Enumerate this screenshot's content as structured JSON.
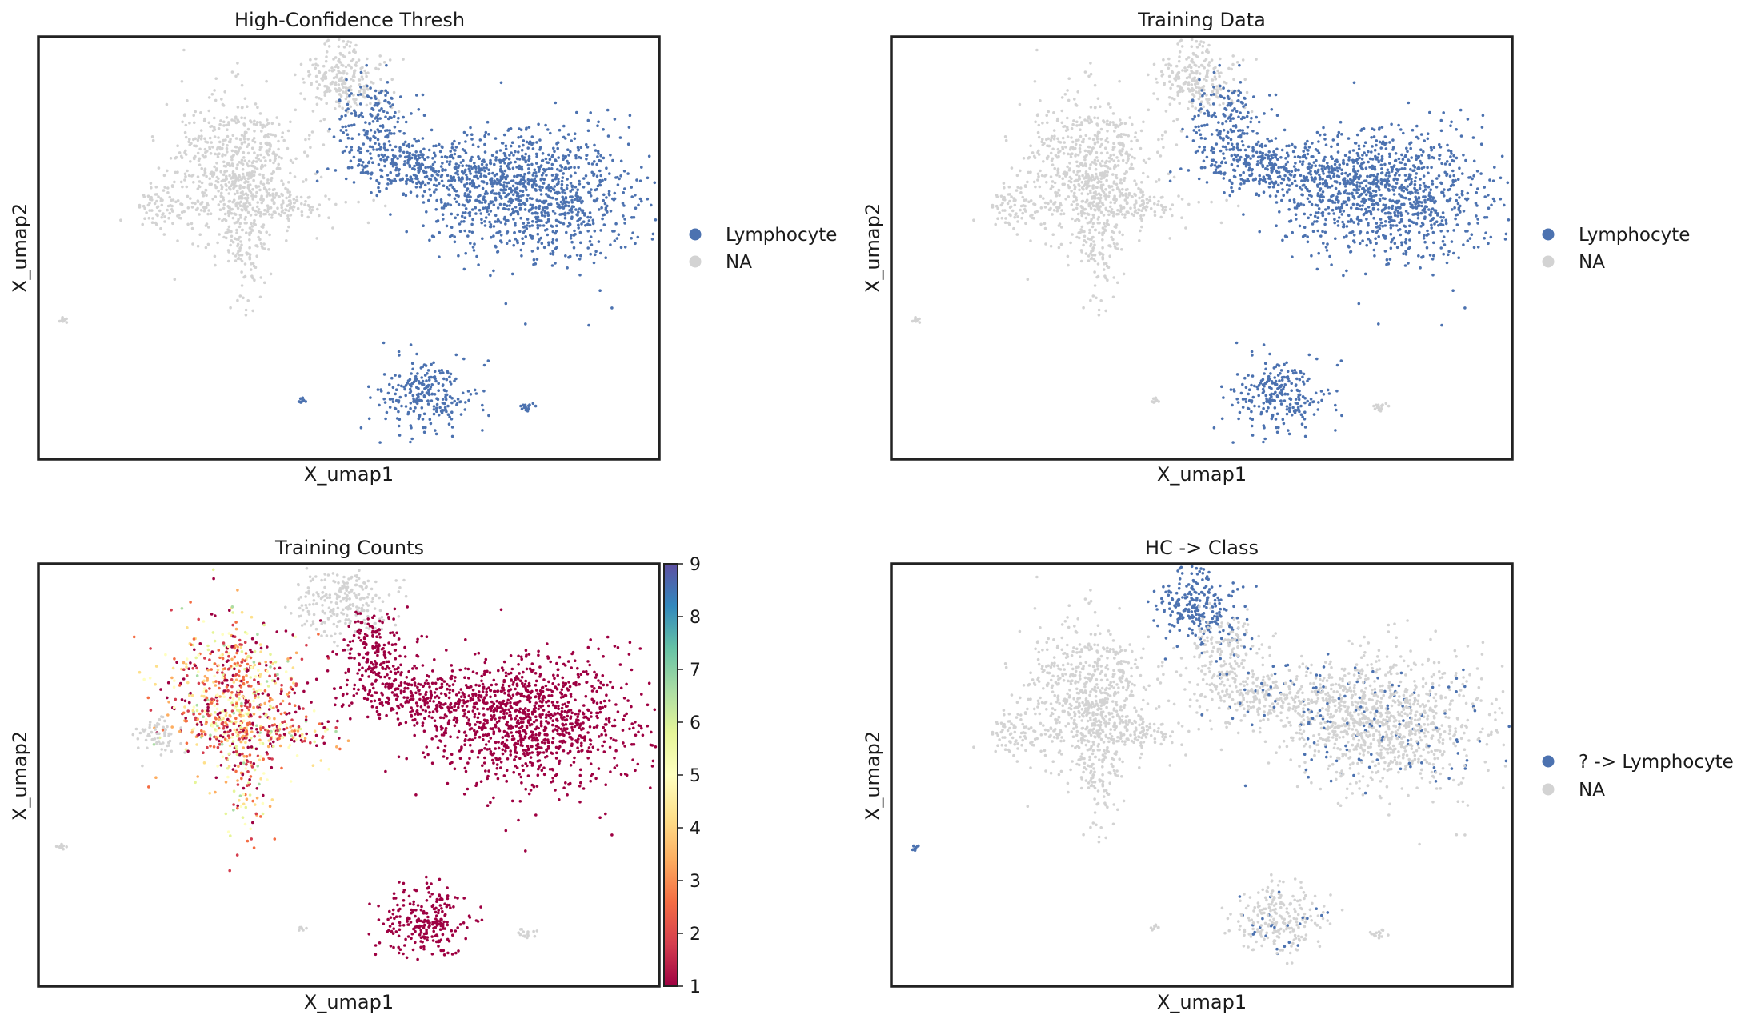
{
  "colors": {
    "category": "#4c72b0",
    "na": "#d3d3d3",
    "frame": "#222222"
  },
  "chart_data": [
    {
      "type": "scatter",
      "title": "High-Confidence Thresh",
      "xlabel": "X_umap1",
      "ylabel": "X_umap2",
      "grid": false,
      "legend_position": "right",
      "legend": [
        {
          "label": "Lymphocyte",
          "color": "#4c72b0"
        },
        {
          "label": "NA",
          "color": "#d3d3d3"
        }
      ]
    },
    {
      "type": "scatter",
      "title": "Training Data",
      "xlabel": "X_umap1",
      "ylabel": "X_umap2",
      "grid": false,
      "legend_position": "right",
      "legend": [
        {
          "label": "Lymphocyte",
          "color": "#4c72b0"
        },
        {
          "label": "NA",
          "color": "#d3d3d3"
        }
      ]
    },
    {
      "type": "scatter",
      "title": "Training Counts",
      "xlabel": "X_umap1",
      "ylabel": "X_umap2",
      "grid": false,
      "colorbar": {
        "colormap": "Spectral",
        "min": 1,
        "max": 9,
        "ticks": [
          "1",
          "2",
          "3",
          "4",
          "5",
          "6",
          "7",
          "8",
          "9"
        ]
      }
    },
    {
      "type": "scatter",
      "title": "HC -> Class",
      "xlabel": "X_umap1",
      "ylabel": "X_umap2",
      "grid": false,
      "legend_position": "right",
      "legend": [
        {
          "label": "? -> Lymphocyte",
          "color": "#4c72b0"
        },
        {
          "label": "NA",
          "color": "#d3d3d3"
        }
      ]
    }
  ]
}
